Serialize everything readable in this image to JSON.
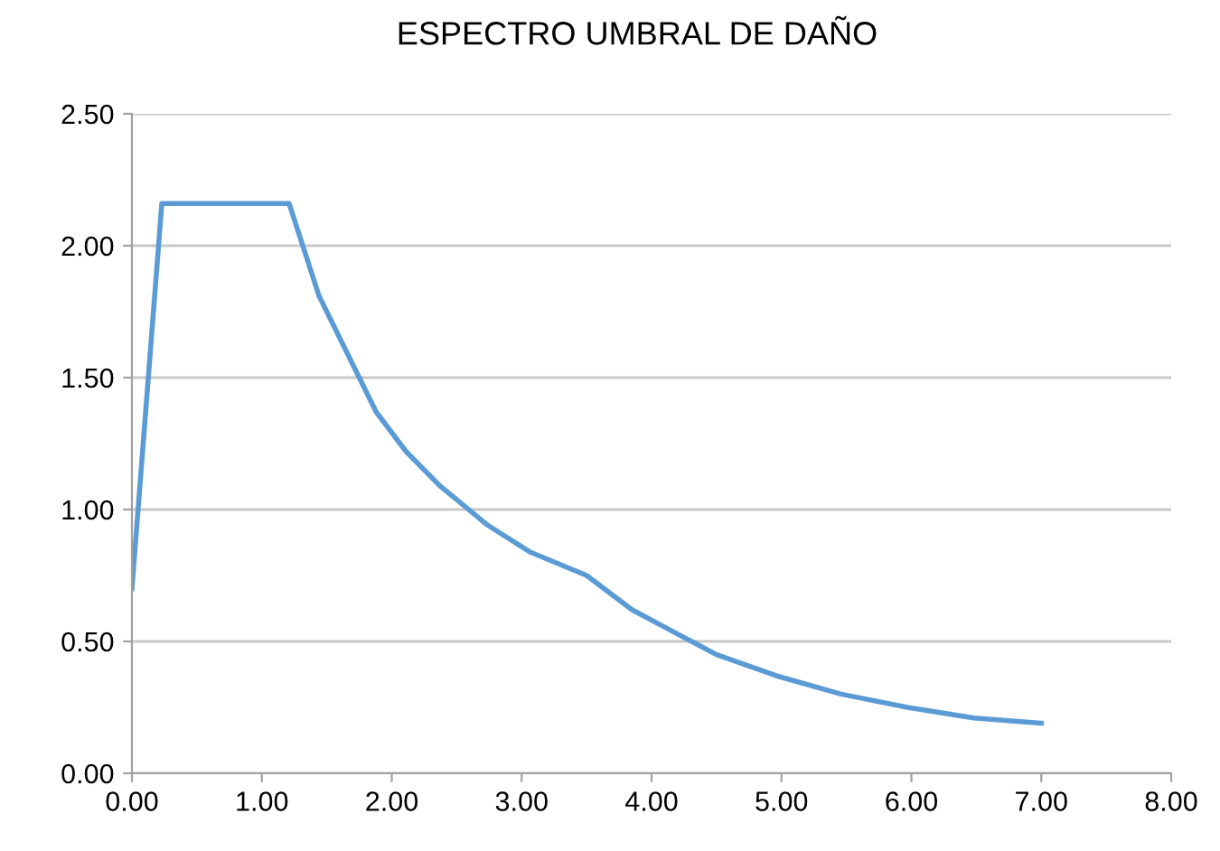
{
  "chart_data": {
    "type": "line",
    "title": "ESPECTRO UMBRAL DE DAÑO",
    "x": [
      0,
      0.23,
      1.21,
      1.44,
      1.7,
      1.88,
      2.11,
      2.37,
      2.74,
      3.06,
      3.5,
      3.85,
      4.27,
      4.5,
      4.96,
      5.46,
      5.97,
      6.48,
      7.0
    ],
    "series": [
      {
        "color": "#5b9bd5",
        "values": [
          0.7,
          2.16,
          2.16,
          1.81,
          1.55,
          1.37,
          1.22,
          1.09,
          0.94,
          0.84,
          0.75,
          0.62,
          0.51,
          0.45,
          0.37,
          0.3,
          0.25,
          0.21,
          0.19
        ]
      }
    ],
    "xlim": [
      0,
      8
    ],
    "xticks": [
      {
        "value": 0,
        "label": "0.00"
      },
      {
        "value": 1,
        "label": "1.00"
      },
      {
        "value": 2,
        "label": "2.00"
      },
      {
        "value": 3,
        "label": "3.00"
      },
      {
        "value": 4,
        "label": "4.00"
      },
      {
        "value": 5,
        "label": "5.00"
      },
      {
        "value": 6,
        "label": "6.00"
      },
      {
        "value": 7,
        "label": "7.00"
      },
      {
        "value": 8,
        "label": "8.00"
      }
    ],
    "ylim": [
      0,
      2.5
    ],
    "yticks": [
      {
        "value": 0,
        "label": "0.00"
      },
      {
        "value": 0.5,
        "label": "0.50"
      },
      {
        "value": 1,
        "label": "1.00"
      },
      {
        "value": 1.5,
        "label": "1.50"
      },
      {
        "value": 2,
        "label": "2.00"
      },
      {
        "value": 2.5,
        "label": "2.50"
      }
    ],
    "grid": "y",
    "marker": "none",
    "line_style": "solid"
  }
}
